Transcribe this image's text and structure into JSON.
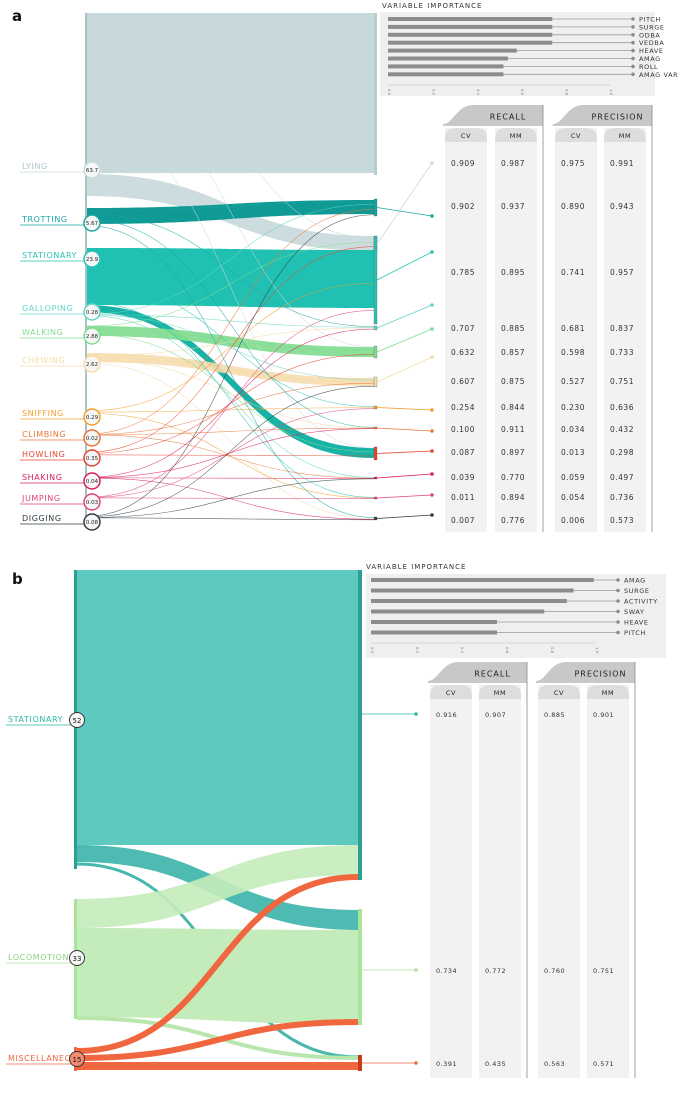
{
  "chart_data": [
    {
      "panel": "a",
      "type": "sankey",
      "importance": {
        "title": "VARIABLE IMPORTANCE",
        "type": "bar",
        "xlim": [
          0,
          1
        ],
        "ticks": [
          "0.0",
          "0.2",
          "0.4",
          "0.6",
          "0.8",
          "1.0"
        ],
        "variables": [
          "PITCH",
          "SURGE",
          "ODBA",
          "VEDBA",
          "HEAVE",
          "AMAG",
          "ROLL",
          "AMAG VAR"
        ],
        "values": [
          0.74,
          0.74,
          0.74,
          0.74,
          0.58,
          0.54,
          0.52,
          0.52
        ]
      },
      "behaviours": [
        {
          "name": "LYING",
          "value": "63.7",
          "color": "#c9dbdc",
          "recall_cv": "0.909",
          "recall_mm": "0.987",
          "precision_cv": "0.975",
          "precision_mm": "0.991"
        },
        {
          "name": "TROTTING",
          "value": "5.67",
          "color": "#1aa5a3",
          "recall_cv": "0.902",
          "recall_mm": "0.937",
          "precision_cv": "0.890",
          "precision_mm": "0.943"
        },
        {
          "name": "STATIONARY",
          "value": "23.9",
          "color": "#27c2b4",
          "recall_cv": "0.785",
          "recall_mm": "0.895",
          "precision_cv": "0.741",
          "precision_mm": "0.957"
        },
        {
          "name": "GALLOPING",
          "value": "0.28",
          "color": "#63d4c6",
          "recall_cv": "0.707",
          "recall_mm": "0.885",
          "precision_cv": "0.681",
          "precision_mm": "0.837"
        },
        {
          "name": "WALKING",
          "value": "2.88",
          "color": "#7fdc8f",
          "recall_cv": "0.632",
          "recall_mm": "0.857",
          "precision_cv": "0.598",
          "precision_mm": "0.733"
        },
        {
          "name": "CHEWING",
          "value": "2.62",
          "color": "#f5dcaa",
          "recall_cv": "0.607",
          "recall_mm": "0.875",
          "precision_cv": "0.527",
          "precision_mm": "0.751"
        },
        {
          "name": "SNIFFING",
          "value": "0.29",
          "color": "#f2a02c",
          "recall_cv": "0.254",
          "recall_mm": "0.844",
          "precision_cv": "0.230",
          "precision_mm": "0.636"
        },
        {
          "name": "CLIMBING",
          "value": "0.02",
          "color": "#e8763a",
          "recall_cv": "0.100",
          "recall_mm": "0.911",
          "precision_cv": "0.034",
          "precision_mm": "0.432"
        },
        {
          "name": "HOWLING",
          "value": "0.35",
          "color": "#e5462f",
          "recall_cv": "0.087",
          "recall_mm": "0.897",
          "precision_cv": "0.013",
          "precision_mm": "0.298"
        },
        {
          "name": "SHAKING",
          "value": "0.04",
          "color": "#d6205a",
          "recall_cv": "0.039",
          "recall_mm": "0.770",
          "precision_cv": "0.059",
          "precision_mm": "0.497"
        },
        {
          "name": "JUMPING",
          "value": "0.03",
          "color": "#e0437e",
          "recall_cv": "0.011",
          "recall_mm": "0.894",
          "precision_cv": "0.054",
          "precision_mm": "0.736"
        },
        {
          "name": "DIGGING",
          "value": "0.08",
          "color": "#2f3d45",
          "recall_cv": "0.007",
          "recall_mm": "0.776",
          "precision_cv": "0.006",
          "precision_mm": "0.573"
        }
      ]
    },
    {
      "panel": "b",
      "type": "sankey",
      "importance": {
        "title": "VARIABLE IMPORTANCE",
        "type": "bar",
        "xlim": [
          0,
          1
        ],
        "ticks": [
          "0.0",
          "0.2",
          "0.4",
          "0.6",
          "0.8",
          "1.0"
        ],
        "variables": [
          "AMAG",
          "SURGE",
          "ACTIVITY",
          "SWAY",
          "HEAVE",
          "PITCH"
        ],
        "values": [
          0.99,
          0.9,
          0.87,
          0.77,
          0.56,
          0.56
        ]
      },
      "behaviours": [
        {
          "name": "STATIONARY",
          "value": "52",
          "color": "#2fb7a8",
          "recall_cv": "0.916",
          "recall_mm": "0.907",
          "precision_cv": "0.885",
          "precision_mm": "0.901"
        },
        {
          "name": "LOCOMOTION",
          "value": "33",
          "color": "#a8e49a",
          "recall_cv": "0.734",
          "recall_mm": "0.772",
          "precision_cv": "0.760",
          "precision_mm": "0.751"
        },
        {
          "name": "MISCELLANEOUS",
          "value": "15",
          "color": "#f0663f",
          "recall_cv": "0.391",
          "recall_mm": "0.435",
          "precision_cv": "0.563",
          "precision_mm": "0.571"
        }
      ]
    }
  ],
  "table_headers": {
    "recall": "RECALL",
    "precision": "PRECISION",
    "cv": "CV",
    "mm": "MM"
  }
}
